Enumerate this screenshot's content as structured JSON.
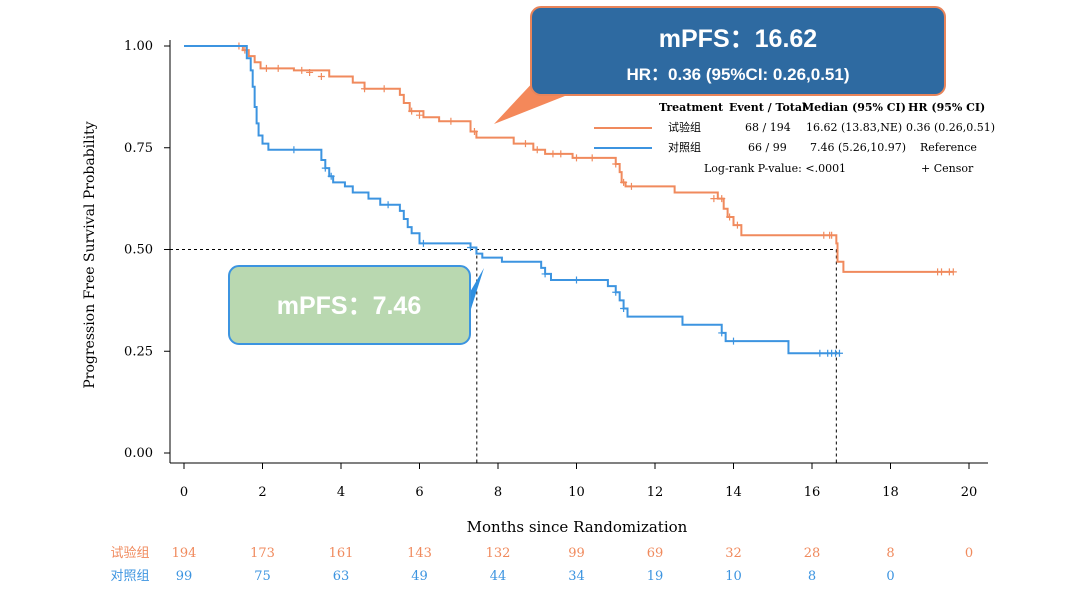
{
  "chart_data": {
    "type": "line",
    "subtype": "kaplan-meier",
    "xlabel": "Months since Randomization",
    "ylabel": "Progression Free Survival Probability",
    "xlim": [
      0,
      20
    ],
    "ylim": [
      0,
      1
    ],
    "x_ticks": [
      0,
      2,
      4,
      6,
      8,
      10,
      12,
      14,
      16,
      18,
      20
    ],
    "y_ticks": [
      0.0,
      0.25,
      0.5,
      0.75,
      1.0
    ],
    "y_tick_labels": [
      "0.00",
      "0.25",
      "0.50",
      "0.75",
      "1.00"
    ],
    "series": [
      {
        "name": "试验组",
        "color": "#f08a5d",
        "steps": [
          [
            0,
            1.0
          ],
          [
            1.5,
            0.99
          ],
          [
            1.65,
            0.975
          ],
          [
            1.8,
            0.96
          ],
          [
            1.95,
            0.945
          ],
          [
            2.8,
            0.94
          ],
          [
            3.7,
            0.925
          ],
          [
            4.3,
            0.91
          ],
          [
            4.6,
            0.895
          ],
          [
            5.5,
            0.88
          ],
          [
            5.6,
            0.86
          ],
          [
            5.75,
            0.84
          ],
          [
            6.1,
            0.825
          ],
          [
            6.5,
            0.815
          ],
          [
            7.3,
            0.79
          ],
          [
            7.45,
            0.775
          ],
          [
            8.4,
            0.76
          ],
          [
            8.9,
            0.745
          ],
          [
            9.2,
            0.735
          ],
          [
            9.9,
            0.725
          ],
          [
            11.0,
            0.71
          ],
          [
            11.1,
            0.69
          ],
          [
            11.15,
            0.665
          ],
          [
            11.25,
            0.655
          ],
          [
            12.5,
            0.64
          ],
          [
            13.6,
            0.625
          ],
          [
            13.75,
            0.6
          ],
          [
            13.85,
            0.58
          ],
          [
            14.0,
            0.56
          ],
          [
            14.2,
            0.535
          ],
          [
            16.62,
            0.515
          ],
          [
            16.65,
            0.47
          ],
          [
            16.8,
            0.445
          ]
        ],
        "end_x": 19.6,
        "censor": [
          [
            1.4,
            1.0
          ],
          [
            1.55,
            0.99
          ],
          [
            2.1,
            0.945
          ],
          [
            2.4,
            0.945
          ],
          [
            3.0,
            0.94
          ],
          [
            3.2,
            0.935
          ],
          [
            3.5,
            0.925
          ],
          [
            4.6,
            0.895
          ],
          [
            5.1,
            0.895
          ],
          [
            5.8,
            0.84
          ],
          [
            6.0,
            0.83
          ],
          [
            6.8,
            0.815
          ],
          [
            7.4,
            0.79
          ],
          [
            8.7,
            0.76
          ],
          [
            9.0,
            0.745
          ],
          [
            9.4,
            0.735
          ],
          [
            9.6,
            0.735
          ],
          [
            10.0,
            0.725
          ],
          [
            10.4,
            0.725
          ],
          [
            11.0,
            0.71
          ],
          [
            11.2,
            0.665
          ],
          [
            11.4,
            0.655
          ],
          [
            13.5,
            0.625
          ],
          [
            13.7,
            0.625
          ],
          [
            13.9,
            0.58
          ],
          [
            14.1,
            0.56
          ],
          [
            16.3,
            0.535
          ],
          [
            16.45,
            0.535
          ],
          [
            16.5,
            0.535
          ],
          [
            19.2,
            0.445
          ],
          [
            19.3,
            0.445
          ],
          [
            19.5,
            0.445
          ],
          [
            19.6,
            0.445
          ]
        ]
      },
      {
        "name": "对照组",
        "color": "#3c94e0",
        "steps": [
          [
            0,
            1.0
          ],
          [
            1.6,
            0.97
          ],
          [
            1.7,
            0.94
          ],
          [
            1.75,
            0.9
          ],
          [
            1.8,
            0.85
          ],
          [
            1.85,
            0.81
          ],
          [
            1.9,
            0.78
          ],
          [
            2.0,
            0.76
          ],
          [
            2.15,
            0.745
          ],
          [
            3.5,
            0.72
          ],
          [
            3.6,
            0.7
          ],
          [
            3.7,
            0.68
          ],
          [
            3.8,
            0.665
          ],
          [
            4.1,
            0.655
          ],
          [
            4.3,
            0.64
          ],
          [
            4.7,
            0.625
          ],
          [
            5.0,
            0.61
          ],
          [
            5.5,
            0.595
          ],
          [
            5.6,
            0.575
          ],
          [
            5.7,
            0.555
          ],
          [
            5.8,
            0.54
          ],
          [
            6.0,
            0.515
          ],
          [
            7.3,
            0.505
          ],
          [
            7.45,
            0.49
          ],
          [
            7.6,
            0.48
          ],
          [
            8.1,
            0.47
          ],
          [
            9.1,
            0.455
          ],
          [
            9.2,
            0.44
          ],
          [
            9.35,
            0.425
          ],
          [
            10.8,
            0.41
          ],
          [
            11.0,
            0.395
          ],
          [
            11.1,
            0.375
          ],
          [
            11.2,
            0.355
          ],
          [
            11.3,
            0.335
          ],
          [
            12.7,
            0.315
          ],
          [
            13.7,
            0.295
          ],
          [
            13.8,
            0.275
          ],
          [
            15.4,
            0.245
          ]
        ],
        "end_x": 16.7,
        "censor": [
          [
            2.8,
            0.745
          ],
          [
            3.6,
            0.7
          ],
          [
            3.75,
            0.68
          ],
          [
            5.2,
            0.61
          ],
          [
            6.1,
            0.515
          ],
          [
            7.3,
            0.505
          ],
          [
            9.2,
            0.44
          ],
          [
            10.0,
            0.425
          ],
          [
            11.0,
            0.395
          ],
          [
            11.2,
            0.355
          ],
          [
            13.7,
            0.295
          ],
          [
            14.0,
            0.275
          ],
          [
            16.2,
            0.245
          ],
          [
            16.4,
            0.245
          ],
          [
            16.5,
            0.245
          ],
          [
            16.6,
            0.245
          ],
          [
            16.7,
            0.245
          ]
        ]
      }
    ],
    "median_lines": [
      {
        "x": 7.46,
        "y": 0.5
      },
      {
        "x": 16.62,
        "y": 0.5
      }
    ],
    "legend": {
      "headers": [
        "Treatment",
        "Event / Total",
        "Median (95% CI)",
        "HR (95% CI)"
      ],
      "rows": [
        {
          "name": "试验组",
          "events": "68 / 194",
          "median": "16.62 (13.83,NE)",
          "hr": "0.36 (0.26,0.51)"
        },
        {
          "name": "对照组",
          "events": "66 / 99",
          "median": "7.46 (5.26,10.97)",
          "hr": "Reference"
        }
      ],
      "logrank": "Log-rank P-value: <.0001",
      "censor_label": "+  Censor"
    },
    "risk_table": {
      "groups": [
        {
          "name": "试验组",
          "counts": [
            "194",
            "173",
            "161",
            "143",
            "132",
            "99",
            "69",
            "32",
            "28",
            "8",
            "0"
          ]
        },
        {
          "name": "对照组",
          "counts": [
            "99",
            "75",
            "63",
            "49",
            "44",
            "34",
            "19",
            "10",
            "8",
            "0"
          ]
        }
      ]
    }
  },
  "callouts": {
    "experimental": {
      "title": "mPFS：16.62",
      "subtitle": "HR：0.36 (95%CI: 0.26,0.51)",
      "fill": "#2e6aa1"
    },
    "control": {
      "title": "mPFS：7.46",
      "fill": "#b9d8b0"
    }
  }
}
